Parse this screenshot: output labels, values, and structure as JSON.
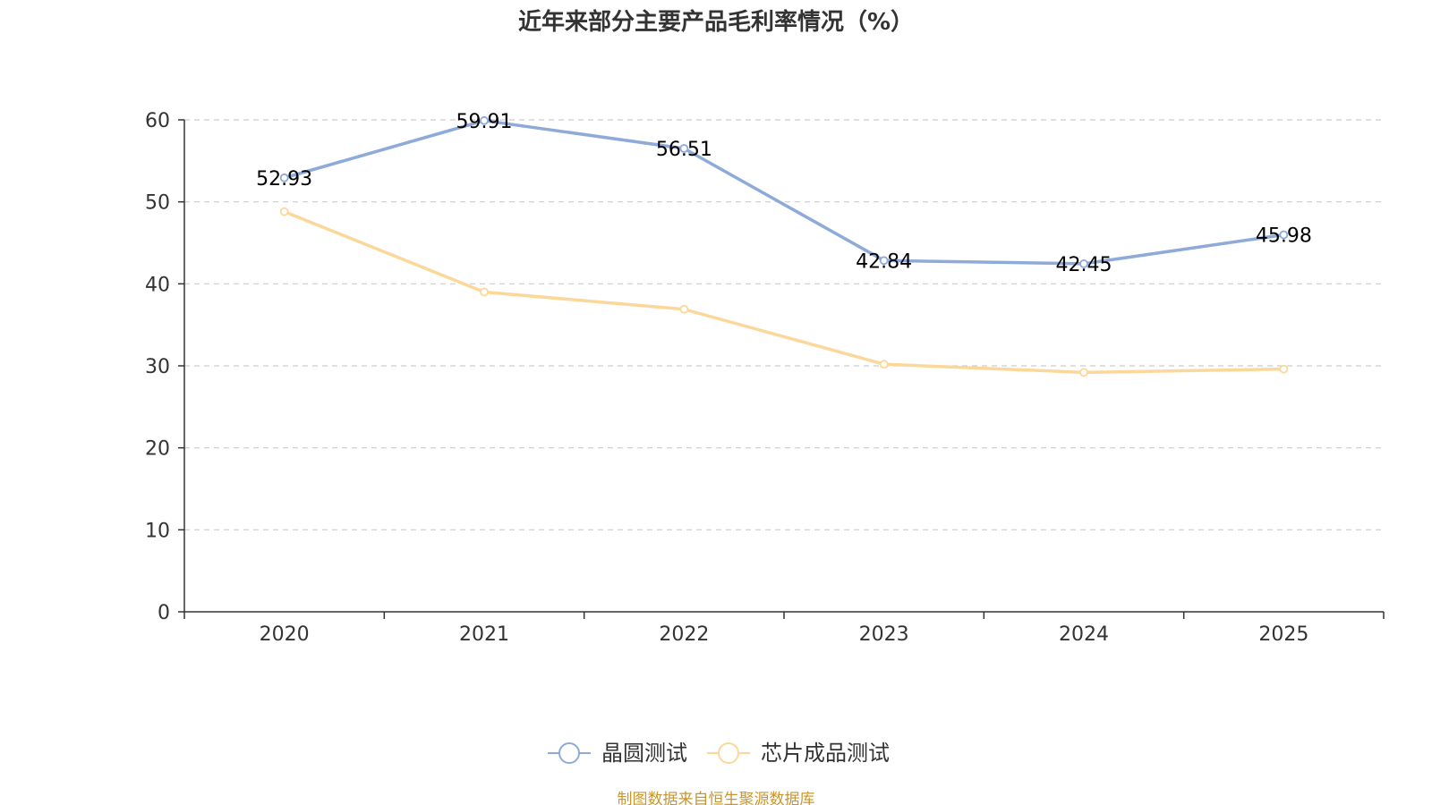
{
  "chart_data": {
    "type": "line",
    "title": "近年来部分主要产品毛利率情况（%）",
    "categories": [
      "2020",
      "2021",
      "2022",
      "2023",
      "2024",
      "2025"
    ],
    "ylim": [
      0,
      60
    ],
    "yticks": [
      0,
      10,
      20,
      30,
      40,
      50,
      60
    ],
    "grid": true,
    "legend_position": "bottom-center",
    "series": [
      {
        "name": "晶圆测试",
        "values": [
          52.93,
          59.91,
          56.51,
          42.84,
          42.45,
          45.98
        ],
        "labels": [
          "52.93",
          "59.91",
          "56.51",
          "42.84",
          "42.45",
          "45.98"
        ],
        "color": "#8eaad8"
      },
      {
        "name": "芯片成品测试",
        "values": [
          48.8,
          39.0,
          36.9,
          30.2,
          29.2,
          29.6
        ],
        "color": "#fbd89a"
      }
    ]
  },
  "source_text": "制图数据来自恒生聚源数据库",
  "colors": {
    "axis": "#333333",
    "grid": "#cccccc",
    "source": "#c8962e"
  }
}
